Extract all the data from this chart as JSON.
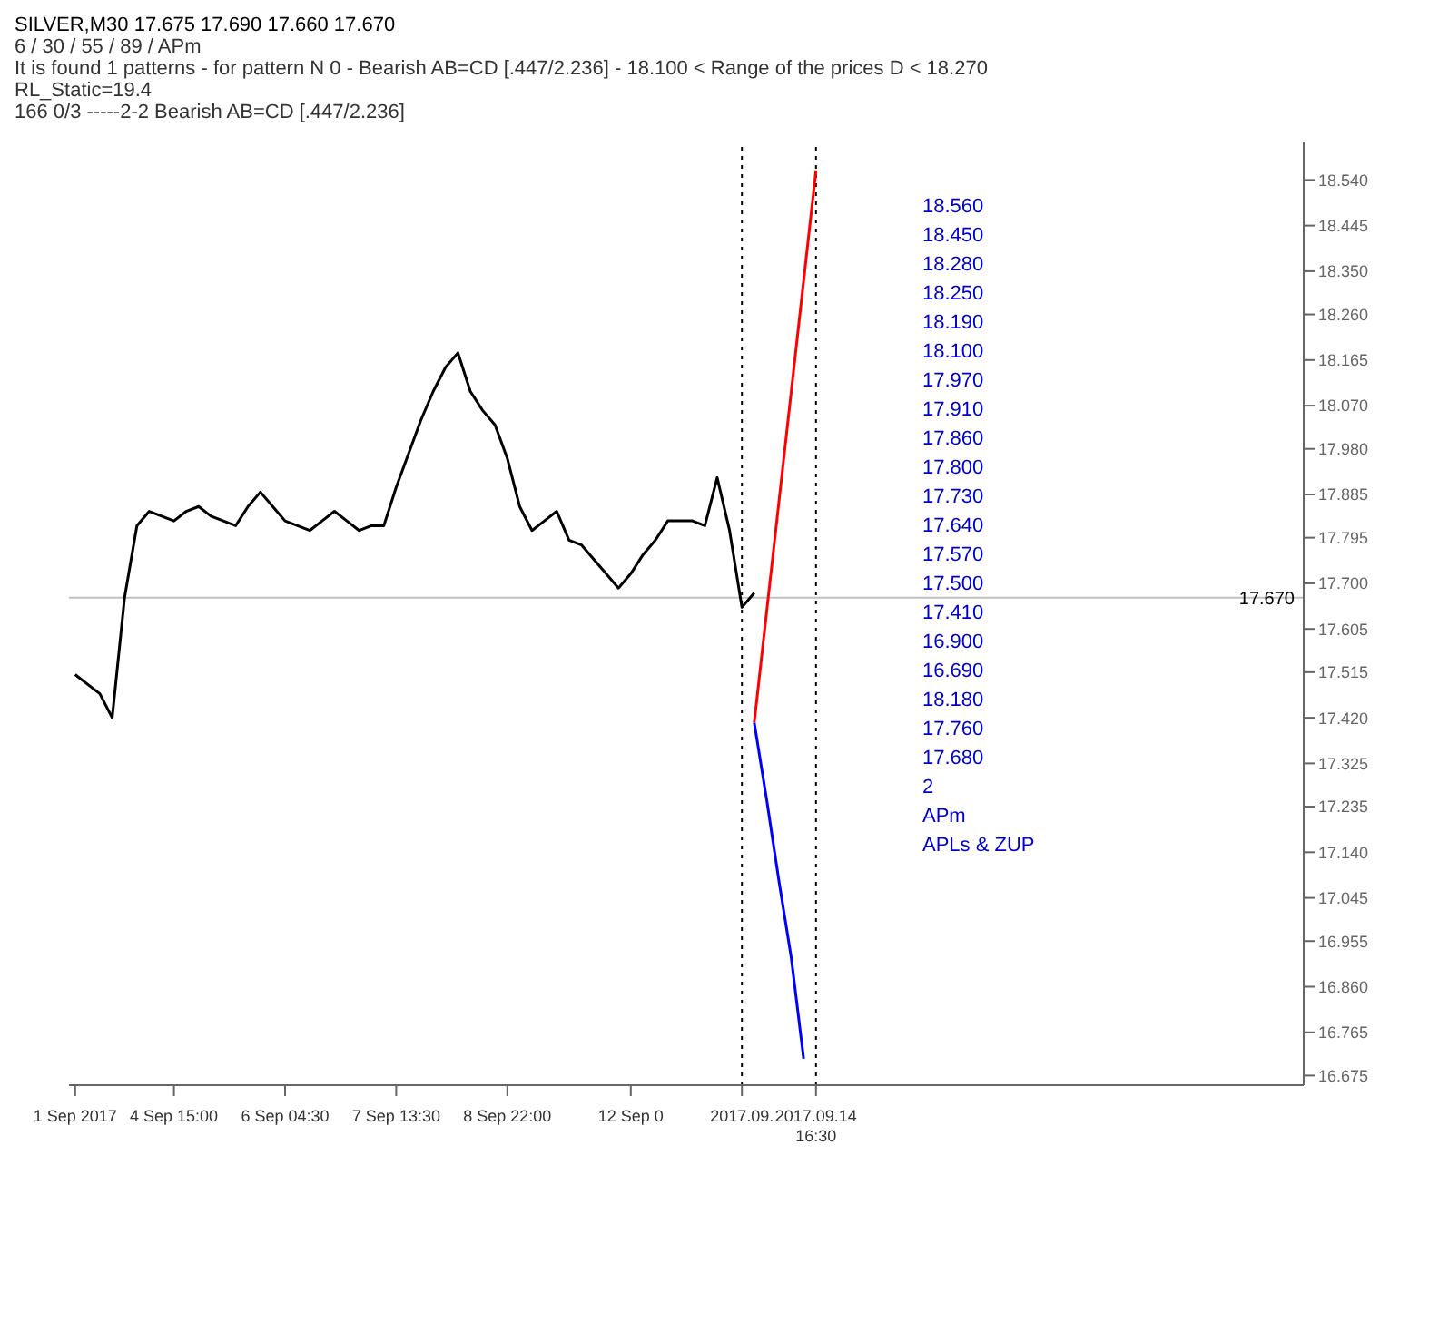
{
  "chart_data": {
    "type": "line",
    "title": "SILVER,M30  17.675 17.690 17.660 17.670",
    "subtitle": "6 / 30 / 55 / 89 / APm\nIt is found 1 patterns  -  for pattern N 0 - Bearish AB=CD [.447/2.236] - 18.100 < Range of the prices D < 18.270\nRL_Static=19.4\n166   0/3   -----2-2   Bearish AB=CD [.447/2.236]",
    "categories": [
      "1 Sep 2017",
      null,
      null,
      null,
      null,
      null,
      null,
      null,
      "4 Sep 15:00",
      null,
      null,
      null,
      null,
      null,
      null,
      null,
      null,
      "6 Sep 04:30",
      null,
      null,
      null,
      null,
      null,
      null,
      null,
      null,
      "7 Sep 13:30",
      null,
      null,
      null,
      null,
      null,
      null,
      null,
      null,
      "8 Sep 22:00",
      null,
      null,
      null,
      null,
      null,
      null,
      null,
      null,
      null,
      "12 Sep 0",
      null,
      null,
      null,
      null,
      null,
      null,
      null,
      null,
      "2017.09.",
      null,
      null,
      null,
      null,
      null,
      "2017.09.14 16:30",
      null,
      null,
      null,
      null,
      null,
      null,
      null,
      null,
      null,
      null,
      null,
      null,
      null,
      null,
      null,
      null,
      null,
      null,
      null,
      null,
      null,
      null,
      null,
      null,
      null,
      null,
      null,
      null,
      null,
      null,
      null,
      null,
      null,
      null,
      null,
      null,
      null,
      null,
      null
    ],
    "ylim": [
      16.655,
      18.62
    ],
    "yticks": [
      {
        "value": 18.54,
        "label": "18.540"
      },
      {
        "value": 18.445,
        "label": "18.445"
      },
      {
        "value": 18.35,
        "label": "18.350"
      },
      {
        "value": 18.26,
        "label": "18.260"
      },
      {
        "value": 18.165,
        "label": "18.165"
      },
      {
        "value": 18.07,
        "label": "18.070"
      },
      {
        "value": 17.98,
        "label": "17.980"
      },
      {
        "value": 17.885,
        "label": "17.885"
      },
      {
        "value": 17.795,
        "label": "17.795"
      },
      {
        "value": 17.7,
        "label": "17.700"
      },
      {
        "value": 17.605,
        "label": "17.605"
      },
      {
        "value": 17.515,
        "label": "17.515"
      },
      {
        "value": 17.42,
        "label": "17.420"
      },
      {
        "value": 17.325,
        "label": "17.325"
      },
      {
        "value": 17.235,
        "label": "17.235"
      },
      {
        "value": 17.14,
        "label": "17.140"
      },
      {
        "value": 17.045,
        "label": "17.045"
      },
      {
        "value": 16.955,
        "label": "16.955"
      },
      {
        "value": 16.86,
        "label": "16.860"
      },
      {
        "value": 16.765,
        "label": "16.765"
      },
      {
        "value": 16.675,
        "label": "16.675"
      }
    ],
    "marker": "none",
    "line_style": "solid",
    "series": [
      {
        "color": "#000000",
        "values": [
          17.51,
          17.49,
          17.47,
          17.42,
          17.67,
          17.82,
          17.85,
          17.84,
          17.83,
          17.85,
          17.86,
          17.84,
          17.83,
          17.82,
          17.86,
          17.89,
          17.86,
          17.83,
          17.82,
          17.81,
          17.83,
          17.85,
          17.83,
          17.81,
          17.82,
          17.82,
          17.9,
          17.97,
          18.04,
          18.1,
          18.15,
          18.18,
          18.1,
          18.06,
          18.03,
          17.96,
          17.86,
          17.81,
          17.83,
          17.85,
          17.79,
          17.78,
          17.75,
          17.72,
          17.69,
          17.72,
          17.76,
          17.79,
          17.83,
          17.83,
          17.83,
          17.82,
          17.92,
          17.81,
          17.65,
          17.68,
          null,
          null,
          null,
          null,
          null,
          null,
          null,
          null,
          null,
          null,
          null,
          null,
          null,
          null,
          null,
          null,
          null,
          null,
          null,
          null,
          null,
          null,
          null,
          null,
          null,
          null,
          null,
          null,
          null,
          null,
          null,
          null,
          null,
          null,
          null,
          null,
          null,
          null,
          null,
          null,
          null,
          null,
          null,
          null
        ]
      },
      {
        "color": "#ff0000",
        "values": [
          null,
          null,
          null,
          null,
          null,
          null,
          null,
          null,
          null,
          null,
          null,
          null,
          null,
          null,
          null,
          null,
          null,
          null,
          null,
          null,
          null,
          null,
          null,
          null,
          null,
          null,
          null,
          null,
          null,
          null,
          null,
          null,
          null,
          null,
          null,
          null,
          null,
          null,
          null,
          null,
          null,
          null,
          null,
          null,
          null,
          null,
          null,
          null,
          null,
          null,
          null,
          null,
          null,
          null,
          null,
          17.41,
          17.64,
          17.87,
          18.1,
          18.33,
          18.56,
          null,
          null,
          null,
          null,
          null,
          null,
          null,
          null,
          null,
          null,
          null,
          null,
          null,
          null,
          null,
          null,
          null,
          null,
          null,
          null,
          null,
          null,
          null,
          null,
          null,
          null,
          null,
          null,
          null,
          null,
          null,
          null,
          null,
          null,
          null,
          null,
          null,
          null,
          null
        ]
      },
      {
        "color": "#0000ff",
        "values": [
          null,
          null,
          null,
          null,
          null,
          null,
          null,
          null,
          null,
          null,
          null,
          null,
          null,
          null,
          null,
          null,
          null,
          null,
          null,
          null,
          null,
          null,
          null,
          null,
          null,
          null,
          null,
          null,
          null,
          null,
          null,
          null,
          null,
          null,
          null,
          null,
          null,
          null,
          null,
          null,
          null,
          null,
          null,
          null,
          null,
          null,
          null,
          null,
          null,
          null,
          null,
          null,
          null,
          null,
          null,
          17.41,
          17.25,
          17.08,
          16.92,
          16.71,
          null,
          null,
          null,
          null,
          null,
          null,
          null,
          null,
          null,
          null,
          null,
          null,
          null,
          null,
          null,
          null,
          null,
          null,
          null,
          null,
          null,
          null,
          null,
          null,
          null,
          null,
          null,
          null,
          null,
          null,
          null,
          null,
          null,
          null,
          null,
          null,
          null,
          null,
          null,
          null
        ]
      }
    ],
    "ref_lines": [
      {
        "axis": "y",
        "value": 17.67,
        "label": "17.670",
        "color": "#c0c0c0"
      },
      {
        "axis": "x",
        "value": "2017.09.",
        "color": "#000000",
        "line_style": "dotted"
      },
      {
        "axis": "x",
        "value": "2017.09.14 16:30",
        "color": "#000000",
        "line_style": "dotted"
      }
    ],
    "annotations": [
      "18.560",
      "18.450",
      "18.280",
      "18.250",
      "18.190",
      "18.100",
      "17.970",
      "17.910",
      "17.860",
      "17.800",
      "17.730",
      "17.640",
      "17.570",
      "17.500",
      "17.410",
      "16.900",
      "16.690",
      "18.180",
      "17.760",
      "17.680",
      "2",
      "APm",
      "APLs & ZUP"
    ]
  }
}
